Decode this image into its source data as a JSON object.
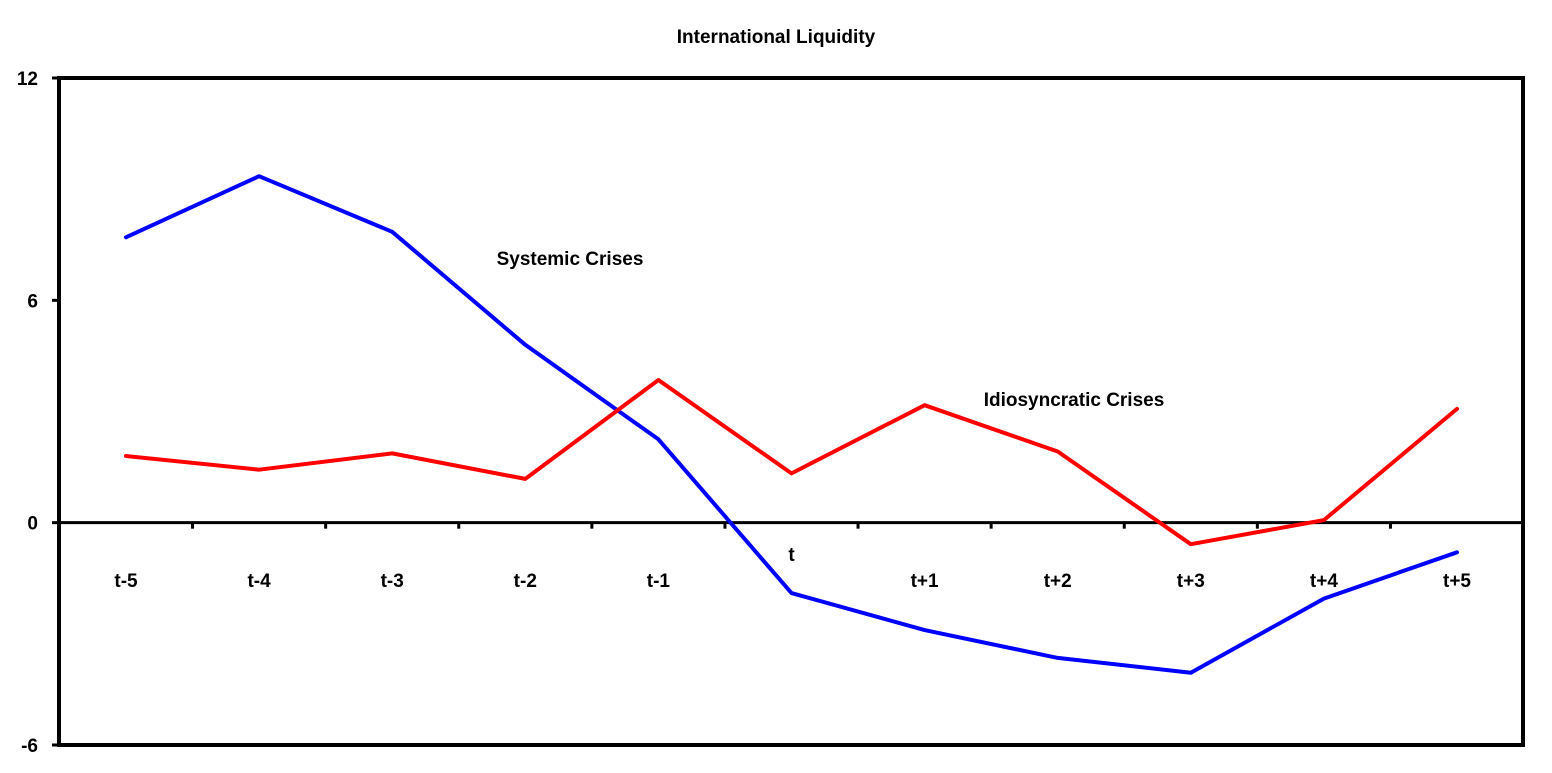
{
  "chart_data": {
    "type": "line",
    "title": "International  Liquidity",
    "xlabel": "",
    "ylabel": "",
    "categories": [
      "t-5",
      "t-4",
      "t-3",
      "t-2",
      "t-1",
      "t",
      "t+1",
      "t+2",
      "t+3",
      "t+4",
      "t+5"
    ],
    "ylim": [
      -6,
      12
    ],
    "yticks": [
      "-6",
      "0",
      "6",
      "12"
    ],
    "grid": false,
    "legend": "none",
    "series": [
      {
        "name": "Systemic Crises",
        "color": "#0000ff",
        "values": [
          7.7,
          9.35,
          7.85,
          4.8,
          2.25,
          -1.9,
          -2.9,
          -3.65,
          -4.05,
          -2.05,
          -0.8
        ]
      },
      {
        "name": "Idiosyncratic Crises",
        "color": "#ff0000",
        "values": [
          1.8,
          1.43,
          1.87,
          1.18,
          3.85,
          1.33,
          3.17,
          1.92,
          -0.58,
          0.07,
          3.07
        ]
      }
    ]
  }
}
